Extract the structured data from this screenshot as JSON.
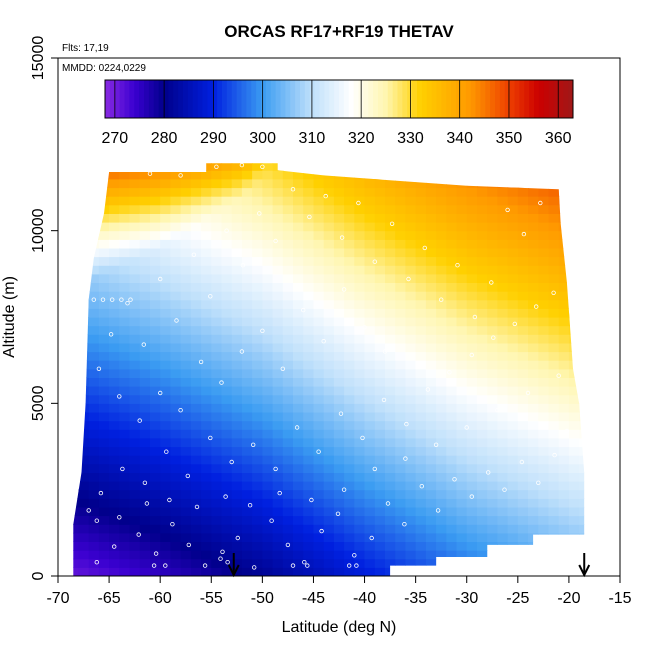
{
  "chart_data": {
    "type": "heatmap",
    "title": "ORCAS RF17+RF19 THETAV",
    "subtitle_flights": "Flts: 17,19",
    "subtitle_dates": "MMDD: 0224,0229",
    "xlabel": "Latitude (deg N)",
    "ylabel": "Altitude (m)",
    "xlim": [
      -70,
      -15
    ],
    "ylim": [
      0,
      15000
    ],
    "x_ticks": [
      -70,
      -65,
      -60,
      -55,
      -50,
      -45,
      -40,
      -35,
      -30,
      -25,
      -20,
      -15
    ],
    "y_ticks": [
      0,
      5000,
      10000,
      15000
    ],
    "colorbar": {
      "range": [
        268,
        363
      ],
      "ticks": [
        270,
        280,
        290,
        300,
        310,
        320,
        330,
        340,
        350,
        360
      ],
      "stops": [
        {
          "v": 268,
          "c": "#8a2be2"
        },
        {
          "v": 274,
          "c": "#3a00d0"
        },
        {
          "v": 280,
          "c": "#00008b"
        },
        {
          "v": 290,
          "c": "#0020e0"
        },
        {
          "v": 300,
          "c": "#3b9cf2"
        },
        {
          "v": 310,
          "c": "#bfe0fb"
        },
        {
          "v": 318,
          "c": "#ffffff"
        },
        {
          "v": 325,
          "c": "#fff6b0"
        },
        {
          "v": 332,
          "c": "#ffd000"
        },
        {
          "v": 342,
          "c": "#ff9a00"
        },
        {
          "v": 350,
          "c": "#ee4000"
        },
        {
          "v": 356,
          "c": "#cc0000"
        },
        {
          "v": 363,
          "c": "#a01818"
        }
      ]
    },
    "field_model": {
      "surface_thetav_by_latitude": [
        {
          "lat": -68,
          "v": 271
        },
        {
          "lat": -60,
          "v": 275
        },
        {
          "lat": -50,
          "v": 281
        },
        {
          "lat": -40,
          "v": 289
        },
        {
          "lat": -30,
          "v": 296
        },
        {
          "lat": -19,
          "v": 302
        }
      ],
      "lapse_K_per_km": 4.1,
      "tropopause_height_m_by_latitude": [
        {
          "lat": -68,
          "h": 8500
        },
        {
          "lat": -60,
          "h": 9500
        },
        {
          "lat": -52,
          "h": 11000
        },
        {
          "lat": -40,
          "h": 15000
        },
        {
          "lat": -19,
          "h": 15000
        }
      ],
      "stratospheric_lapse_K_per_km": 13
    },
    "coverage_outline": [
      [
        -68.5,
        0
      ],
      [
        -68.5,
        1500
      ],
      [
        -67.7,
        3000
      ],
      [
        -67.3,
        5000
      ],
      [
        -67,
        8000
      ],
      [
        -66.5,
        9200
      ],
      [
        -65.5,
        10500
      ],
      [
        -65,
        11700
      ],
      [
        -55.5,
        11700
      ],
      [
        -55.5,
        11950
      ],
      [
        -48.5,
        11950
      ],
      [
        -48.5,
        11750
      ],
      [
        -44,
        11600
      ],
      [
        -30,
        11300
      ],
      [
        -21,
        11200
      ],
      [
        -20.8,
        10200
      ],
      [
        -20.2,
        8500
      ],
      [
        -19.6,
        6000
      ],
      [
        -19,
        5000
      ],
      [
        -18.5,
        3000
      ],
      [
        -18.5,
        1200
      ],
      [
        -23.5,
        1200
      ],
      [
        -23.5,
        900
      ],
      [
        -28,
        900
      ],
      [
        -28,
        550
      ],
      [
        -33,
        550
      ],
      [
        -33,
        300
      ],
      [
        -37.5,
        300
      ],
      [
        -37.5,
        0
      ]
    ],
    "arrows": [
      {
        "lat": -52.8,
        "label": ""
      },
      {
        "lat": -18.5,
        "label": ""
      }
    ],
    "sample_points": [
      [
        -66.2,
        400
      ],
      [
        -64.5,
        850
      ],
      [
        -62.1,
        1200
      ],
      [
        -60.4,
        650
      ],
      [
        -58.8,
        1500
      ],
      [
        -57.2,
        900
      ],
      [
        -55.6,
        300
      ],
      [
        -53.9,
        700
      ],
      [
        -52.4,
        1100
      ],
      [
        -50.8,
        250
      ],
      [
        -49.1,
        1600
      ],
      [
        -47.5,
        900
      ],
      [
        -45.9,
        400
      ],
      [
        -44.2,
        1300
      ],
      [
        -42.6,
        1800
      ],
      [
        -41.0,
        600
      ],
      [
        -39.3,
        1100
      ],
      [
        -37.7,
        2100
      ],
      [
        -36.1,
        1500
      ],
      [
        -34.4,
        2600
      ],
      [
        -32.8,
        1900
      ],
      [
        -31.2,
        2800
      ],
      [
        -29.5,
        2300
      ],
      [
        -27.9,
        3000
      ],
      [
        -26.3,
        2500
      ],
      [
        -24.6,
        3300
      ],
      [
        -23.0,
        2700
      ],
      [
        -21.4,
        3500
      ],
      [
        -20.2,
        4200
      ],
      [
        -65.8,
        2400
      ],
      [
        -63.7,
        3100
      ],
      [
        -61.5,
        2700
      ],
      [
        -59.4,
        3600
      ],
      [
        -57.3,
        2900
      ],
      [
        -55.1,
        4000
      ],
      [
        -53.0,
        3300
      ],
      [
        -50.9,
        3800
      ],
      [
        -48.7,
        3100
      ],
      [
        -46.6,
        4300
      ],
      [
        -44.5,
        3600
      ],
      [
        -42.3,
        4700
      ],
      [
        -40.2,
        4000
      ],
      [
        -38.1,
        5100
      ],
      [
        -35.9,
        4400
      ],
      [
        -33.8,
        5400
      ],
      [
        -31.7,
        5900
      ],
      [
        -29.5,
        6400
      ],
      [
        -27.4,
        6900
      ],
      [
        -25.3,
        7300
      ],
      [
        -23.2,
        7800
      ],
      [
        -21.5,
        8200
      ],
      [
        -66.0,
        6000
      ],
      [
        -64.8,
        7000
      ],
      [
        -63.2,
        7900
      ],
      [
        -61.6,
        6700
      ],
      [
        -60.0,
        8600
      ],
      [
        -58.4,
        7400
      ],
      [
        -56.7,
        9300
      ],
      [
        -55.1,
        8100
      ],
      [
        -53.5,
        10000
      ],
      [
        -51.9,
        9000
      ],
      [
        -50.3,
        10500
      ],
      [
        -48.7,
        9700
      ],
      [
        -47.0,
        11200
      ],
      [
        -45.4,
        10400
      ],
      [
        -43.8,
        11000
      ],
      [
        -42.2,
        9800
      ],
      [
        -40.6,
        10800
      ],
      [
        -39.0,
        9100
      ],
      [
        -37.3,
        10200
      ],
      [
        -35.7,
        8600
      ],
      [
        -34.1,
        9500
      ],
      [
        -32.5,
        8000
      ],
      [
        -30.9,
        9000
      ],
      [
        -29.2,
        7500
      ],
      [
        -27.6,
        8500
      ],
      [
        -26.0,
        10600
      ],
      [
        -24.4,
        9900
      ],
      [
        -22.8,
        10800
      ],
      [
        -54.5,
        11850
      ],
      [
        -52.0,
        11900
      ],
      [
        -50.0,
        11850
      ],
      [
        -58.0,
        11600
      ],
      [
        -61.0,
        11650
      ],
      [
        -64.0,
        5200
      ],
      [
        -62.0,
        4500
      ],
      [
        -60.0,
        5300
      ],
      [
        -58.0,
        4800
      ],
      [
        -56.0,
        6200
      ],
      [
        -54.0,
        5600
      ],
      [
        -52.0,
        6500
      ],
      [
        -50.0,
        7100
      ],
      [
        -48.0,
        6000
      ],
      [
        -46.0,
        7700
      ],
      [
        -44.0,
        6800
      ],
      [
        -42.0,
        8300
      ],
      [
        -40.0,
        7200
      ],
      [
        -38.0,
        6500
      ],
      [
        -66.5,
        8000
      ],
      [
        -65.6,
        8000
      ],
      [
        -64.7,
        8000
      ],
      [
        -63.8,
        8000
      ],
      [
        -62.9,
        8000
      ],
      [
        -67.0,
        1900
      ],
      [
        -66.2,
        1600
      ],
      [
        -64.0,
        1700
      ],
      [
        -61.3,
        2100
      ],
      [
        -59.1,
        2200
      ],
      [
        -56.4,
        2000
      ],
      [
        -53.6,
        2300
      ],
      [
        -51.2,
        2050
      ],
      [
        -48.3,
        2400
      ],
      [
        -45.2,
        2200
      ],
      [
        -42.0,
        2500
      ],
      [
        -39.0,
        3100
      ],
      [
        -36.0,
        3400
      ],
      [
        -33.0,
        3800
      ],
      [
        -30.0,
        4300
      ],
      [
        -27.0,
        4800
      ],
      [
        -24.0,
        5300
      ],
      [
        -21.0,
        5800
      ],
      [
        -47.0,
        300
      ],
      [
        -45.6,
        300
      ],
      [
        -41.5,
        300
      ],
      [
        -40.8,
        300
      ],
      [
        -60.6,
        300
      ],
      [
        -59.5,
        300
      ],
      [
        -54.1,
        500
      ],
      [
        -53.4,
        400
      ]
    ]
  }
}
